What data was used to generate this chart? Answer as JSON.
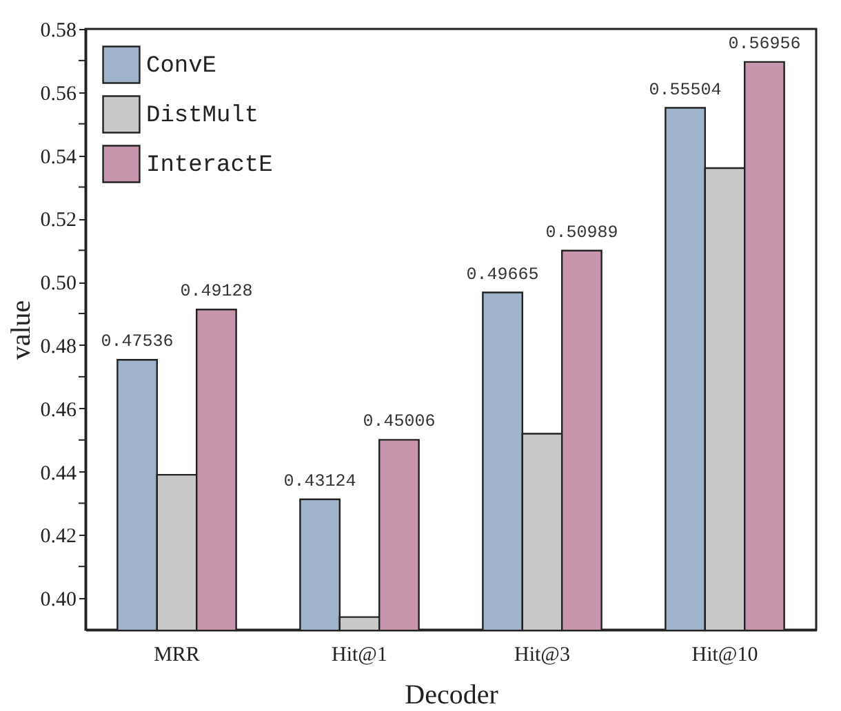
{
  "chart_data": {
    "type": "bar",
    "xlabel": "Decoder",
    "ylabel": "value",
    "categories": [
      "MRR",
      "Hit@1",
      "Hit@3",
      "Hit@10"
    ],
    "series": [
      {
        "name": "ConvE",
        "color": "#9fb4cb",
        "values": [
          0.47536,
          0.43124,
          0.49665,
          0.55504
        ],
        "value_labels": [
          "0.47536",
          "0.43124",
          "0.49665",
          "0.55504"
        ]
      },
      {
        "name": "DistMult",
        "color": "#c8c8c8",
        "values": [
          0.439,
          0.394,
          0.452,
          0.536
        ],
        "value_labels": [
          null,
          null,
          null,
          null
        ]
      },
      {
        "name": "InteractE",
        "color": "#c896ac",
        "values": [
          0.49128,
          0.45006,
          0.50989,
          0.56956
        ],
        "value_labels": [
          "0.49128",
          "0.45006",
          "0.50989",
          "0.56956"
        ]
      }
    ],
    "ylim": [
      0.39,
      0.58
    ],
    "yticks": [
      {
        "value": 0.4,
        "label": "0.40"
      },
      {
        "value": 0.41,
        "label": null
      },
      {
        "value": 0.42,
        "label": "0.42"
      },
      {
        "value": 0.43,
        "label": null
      },
      {
        "value": 0.44,
        "label": "0.44"
      },
      {
        "value": 0.45,
        "label": null
      },
      {
        "value": 0.46,
        "label": "0.46"
      },
      {
        "value": 0.47,
        "label": null
      },
      {
        "value": 0.48,
        "label": "0.48"
      },
      {
        "value": 0.49,
        "label": null
      },
      {
        "value": 0.5,
        "label": "0.50"
      },
      {
        "value": 0.51,
        "label": null
      },
      {
        "value": 0.52,
        "label": "0.52"
      },
      {
        "value": 0.53,
        "label": null
      },
      {
        "value": 0.54,
        "label": "0.54"
      },
      {
        "value": 0.55,
        "label": null
      },
      {
        "value": 0.56,
        "label": "0.56"
      },
      {
        "value": 0.57,
        "label": null
      },
      {
        "value": 0.58,
        "label": "0.58"
      }
    ],
    "legend": "top left",
    "grid": false
  }
}
